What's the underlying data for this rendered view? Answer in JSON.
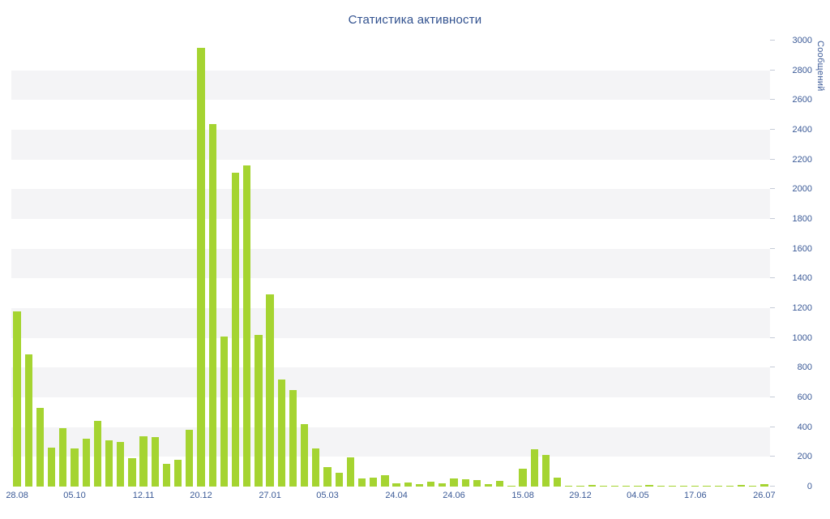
{
  "chart_data": {
    "type": "bar",
    "title": "Статистика активности",
    "xlabel": "",
    "ylabel": "Сообщений",
    "ylim": [
      0,
      3000
    ],
    "y_ticks": [
      0,
      200,
      400,
      600,
      800,
      1000,
      1200,
      1400,
      1600,
      1800,
      2000,
      2200,
      2400,
      2600,
      2800,
      3000
    ],
    "grid": "alternating-horizontal-bands",
    "legend": "none",
    "bar_color": "#a5d431",
    "stripe_color": "#f4f4f6",
    "tick_color": "#c6ccd8",
    "axis_text_color": "#3b5a97",
    "title_color": "#31518f",
    "values": [
      1180,
      890,
      530,
      260,
      390,
      255,
      320,
      440,
      310,
      300,
      190,
      340,
      335,
      150,
      180,
      380,
      2950,
      2440,
      1010,
      2110,
      2160,
      1020,
      1290,
      720,
      650,
      420,
      255,
      130,
      90,
      195,
      55,
      60,
      75,
      20,
      25,
      15,
      30,
      20,
      55,
      50,
      45,
      15,
      40,
      5,
      120,
      250,
      215,
      60,
      5,
      5,
      10,
      5,
      5,
      5,
      5,
      10,
      5,
      5,
      5,
      5,
      5,
      5,
      5,
      10,
      5,
      15
    ],
    "x_tick_labels": [
      {
        "index": 0,
        "label": "28.08"
      },
      {
        "index": 5,
        "label": "05.10"
      },
      {
        "index": 11,
        "label": "12.11"
      },
      {
        "index": 16,
        "label": "20.12"
      },
      {
        "index": 22,
        "label": "27.01"
      },
      {
        "index": 27,
        "label": "05.03"
      },
      {
        "index": 33,
        "label": "24.04"
      },
      {
        "index": 38,
        "label": "24.06"
      },
      {
        "index": 44,
        "label": "15.08"
      },
      {
        "index": 49,
        "label": "29.12"
      },
      {
        "index": 54,
        "label": "04.05"
      },
      {
        "index": 59,
        "label": "17.06"
      },
      {
        "index": 65,
        "label": "26.07"
      }
    ]
  }
}
